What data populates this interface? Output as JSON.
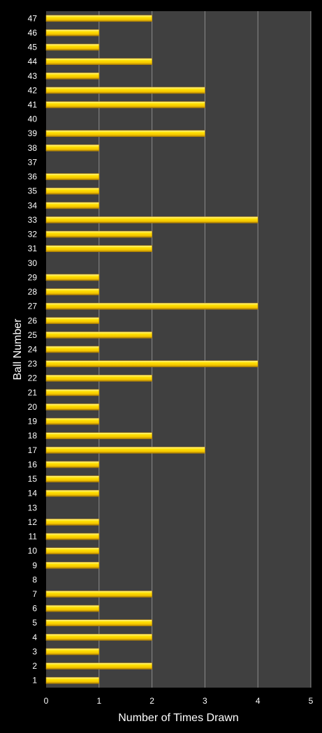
{
  "chart_data": {
    "type": "bar",
    "orientation": "horizontal",
    "title": "",
    "xlabel": "Number of Times Drawn",
    "ylabel": "Ball Number",
    "xlim": [
      0,
      5
    ],
    "x_ticks": [
      "0",
      "1",
      "2",
      "3",
      "4",
      "5"
    ],
    "grid": "vertical",
    "categories": [
      "1",
      "2",
      "3",
      "4",
      "5",
      "6",
      "7",
      "8",
      "9",
      "10",
      "11",
      "12",
      "13",
      "14",
      "15",
      "16",
      "17",
      "18",
      "19",
      "20",
      "21",
      "22",
      "23",
      "24",
      "25",
      "26",
      "27",
      "28",
      "29",
      "30",
      "31",
      "32",
      "33",
      "34",
      "35",
      "36",
      "37",
      "38",
      "39",
      "40",
      "41",
      "42",
      "43",
      "44",
      "45",
      "46",
      "47"
    ],
    "values": [
      1,
      2,
      1,
      2,
      2,
      1,
      2,
      0,
      1,
      1,
      1,
      1,
      0,
      1,
      1,
      1,
      3,
      2,
      1,
      1,
      1,
      2,
      4,
      1,
      2,
      1,
      4,
      1,
      1,
      0,
      2,
      2,
      4,
      1,
      1,
      1,
      0,
      1,
      3,
      0,
      3,
      3,
      1,
      2,
      1,
      1,
      2
    ],
    "colors": {
      "background": "#000000",
      "plot_area": "#404040",
      "gridline": "#8c8c8c",
      "bar_light": "#fff27a",
      "bar_mid": "#ffd700",
      "bar_dark": "#b8860b",
      "text": "#ffffff"
    }
  }
}
